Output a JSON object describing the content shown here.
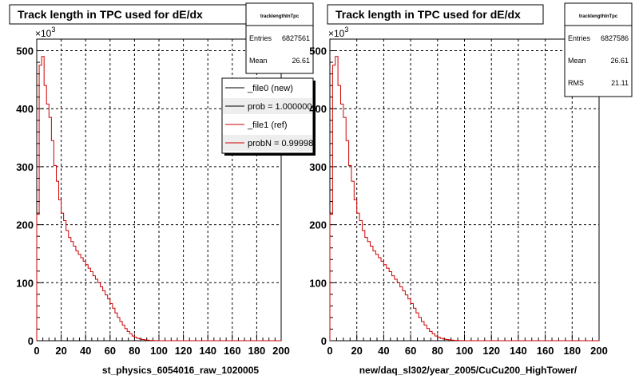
{
  "chart_data": [
    {
      "type": "line",
      "title": "Track length in TPC used for dE/dx",
      "xlabel": "st_physics_6054016_raw_1020005",
      "ylabel": "",
      "y_multiplier": "×10",
      "y_multiplier_exp": "3",
      "xlim": [
        0,
        200
      ],
      "ylim": [
        0,
        520
      ],
      "x_ticks": [
        "0",
        "20",
        "40",
        "60",
        "80",
        "100",
        "120",
        "140",
        "160",
        "180",
        "200"
      ],
      "y_ticks": [
        "0",
        "100",
        "200",
        "300",
        "400",
        "500"
      ],
      "grid": true,
      "bin_width": 2,
      "stats": {
        "name": "tracklengthInTpc",
        "entries_label": "Entries",
        "entries": "6827561",
        "mean_label": "Mean",
        "mean": "26.61"
      },
      "legend": {
        "placement": "top-right",
        "entries": [
          {
            "label": "_file0 (new)",
            "color": "#000000"
          },
          {
            "label": "prob = 1.000000",
            "color": "#000000"
          },
          {
            "label": "_file1 (ref)",
            "color": "#cc0000"
          },
          {
            "label": "probN = 0.99998",
            "color": "#cc0000"
          }
        ]
      },
      "series": [
        {
          "color": "#cc0000",
          "x": [
            0,
            2,
            4,
            6,
            8,
            10,
            12,
            14,
            16,
            18,
            20,
            22,
            24,
            26,
            28,
            30,
            32,
            34,
            36,
            38,
            40,
            42,
            44,
            46,
            48,
            50,
            52,
            54,
            56,
            58,
            60,
            62,
            64,
            66,
            68,
            70,
            72,
            74,
            76,
            78,
            80,
            82,
            84,
            86,
            88,
            90,
            92,
            94,
            96,
            98,
            100,
            102,
            104,
            106,
            108,
            110,
            112,
            114,
            116,
            118,
            120,
            122,
            124,
            126,
            128,
            130,
            132,
            134,
            136,
            138,
            140,
            142,
            144,
            146,
            148,
            150,
            152,
            154,
            156,
            158,
            160,
            162,
            164,
            166,
            168,
            170,
            172,
            174,
            176,
            178,
            180,
            182,
            184,
            186,
            188,
            190,
            192,
            194,
            196,
            198
          ],
          "values": [
            218,
            475,
            490,
            440,
            408,
            385,
            345,
            302,
            275,
            243,
            220,
            207,
            190,
            178,
            171,
            163,
            155,
            149,
            143,
            137,
            131,
            125,
            119,
            112,
            106,
            100,
            93,
            86,
            79,
            72,
            64,
            56,
            48,
            40,
            33,
            27,
            21,
            16,
            12,
            8,
            6,
            4,
            3,
            2,
            1.5,
            1,
            0.6,
            0.4,
            0.2,
            0.1,
            0.05,
            0,
            0,
            0,
            0,
            0,
            0,
            0,
            0,
            0,
            0,
            0,
            0,
            0,
            0,
            0,
            0,
            0,
            0,
            0,
            0,
            0,
            0,
            0,
            0,
            0,
            0,
            0,
            0,
            0,
            0,
            0,
            0,
            0,
            0,
            0,
            0,
            0,
            0,
            0,
            0,
            0,
            0,
            0,
            0,
            0,
            0,
            0,
            0,
            0
          ]
        }
      ]
    },
    {
      "type": "line",
      "title": "Track length in TPC used for dE/dx",
      "xlabel": "new/daq_sl302/year_2005/CuCu200_HighTower/",
      "ylabel": "",
      "y_multiplier": "×10",
      "y_multiplier_exp": "3",
      "xlim": [
        0,
        200
      ],
      "ylim": [
        0,
        520
      ],
      "x_ticks": [
        "0",
        "20",
        "40",
        "60",
        "80",
        "100",
        "120",
        "140",
        "160",
        "180",
        "200"
      ],
      "y_ticks": [
        "0",
        "100",
        "200",
        "300",
        "400",
        "500"
      ],
      "grid": true,
      "bin_width": 2,
      "stats": {
        "name": "tracklengthInTpc",
        "entries_label": "Entries",
        "entries": "6827586",
        "mean_label": "Mean",
        "mean": "26.61",
        "rms_label": "RMS",
        "rms": "21.11"
      },
      "series": [
        {
          "color": "#cc0000",
          "x": [
            0,
            2,
            4,
            6,
            8,
            10,
            12,
            14,
            16,
            18,
            20,
            22,
            24,
            26,
            28,
            30,
            32,
            34,
            36,
            38,
            40,
            42,
            44,
            46,
            48,
            50,
            52,
            54,
            56,
            58,
            60,
            62,
            64,
            66,
            68,
            70,
            72,
            74,
            76,
            78,
            80,
            82,
            84,
            86,
            88,
            90,
            92,
            94,
            96,
            98,
            100,
            102,
            104,
            106,
            108,
            110,
            112,
            114,
            116,
            118,
            120,
            122,
            124,
            126,
            128,
            130,
            132,
            134,
            136,
            138,
            140,
            142,
            144,
            146,
            148,
            150,
            152,
            154,
            156,
            158,
            160,
            162,
            164,
            166,
            168,
            170,
            172,
            174,
            176,
            178,
            180,
            182,
            184,
            186,
            188,
            190,
            192,
            194,
            196,
            198
          ],
          "values": [
            218,
            475,
            490,
            440,
            408,
            385,
            345,
            302,
            275,
            243,
            220,
            207,
            190,
            178,
            171,
            163,
            155,
            149,
            143,
            137,
            131,
            125,
            119,
            112,
            106,
            100,
            93,
            86,
            79,
            72,
            64,
            56,
            48,
            40,
            33,
            27,
            21,
            16,
            12,
            8,
            6,
            4,
            3,
            2,
            1.5,
            1,
            0.6,
            0.4,
            0.2,
            0.1,
            0.05,
            0,
            0,
            0,
            0,
            0,
            0,
            0,
            0,
            0,
            0,
            0,
            0,
            0,
            0,
            0,
            0,
            0,
            0,
            0,
            0,
            0,
            0,
            0,
            0,
            0,
            0,
            0,
            0,
            0,
            0,
            0,
            0,
            0,
            0,
            0,
            0,
            0,
            0,
            0,
            0,
            0,
            0,
            0,
            0,
            0,
            0,
            0,
            0,
            0
          ]
        }
      ]
    }
  ]
}
